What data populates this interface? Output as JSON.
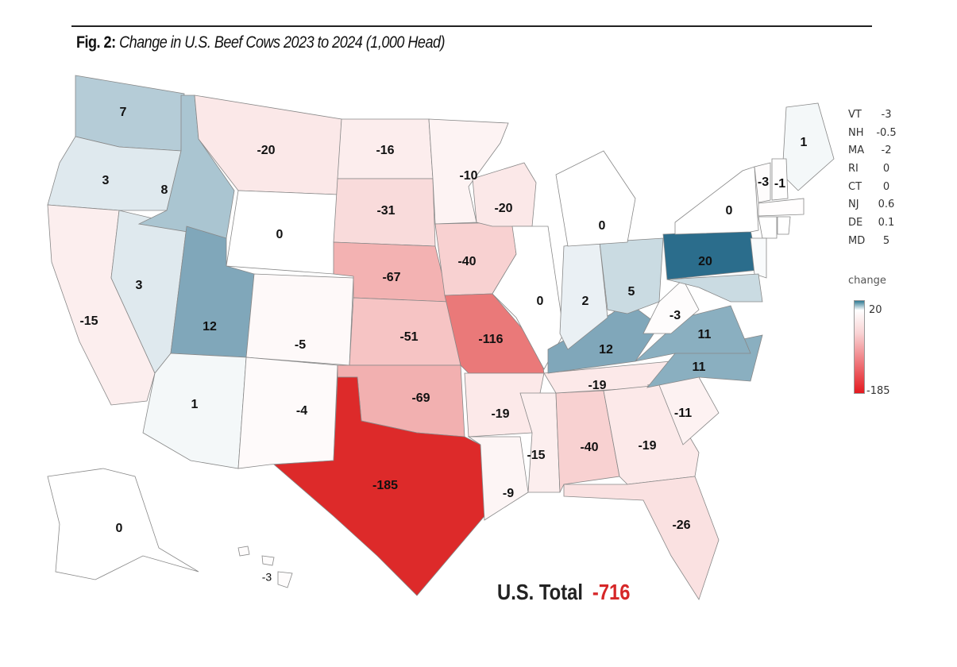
{
  "title": {
    "prefix": "Fig. 2:",
    "text": "Change in U.S. Beef Cows 2023 to 2024 (1,000 Head)"
  },
  "chart_data": {
    "type": "choropleth",
    "title": "Change in U.S. Beef Cows 2023 to 2024 (1,000 Head)",
    "unit": "1,000 Head",
    "states": [
      {
        "id": "WA",
        "value": 7,
        "label": "7"
      },
      {
        "id": "OR",
        "value": 3,
        "label": "3"
      },
      {
        "id": "CA",
        "value": -15,
        "label": "-15"
      },
      {
        "id": "NV",
        "value": 3,
        "label": "3"
      },
      {
        "id": "ID",
        "value": 8,
        "label": "8"
      },
      {
        "id": "MT",
        "value": -20,
        "label": "-20"
      },
      {
        "id": "WY",
        "value": 0,
        "label": "0"
      },
      {
        "id": "UT",
        "value": 12,
        "label": "12"
      },
      {
        "id": "CO",
        "value": -5,
        "label": "-5"
      },
      {
        "id": "AZ",
        "value": 1,
        "label": "1"
      },
      {
        "id": "NM",
        "value": -4,
        "label": "-4"
      },
      {
        "id": "ND",
        "value": -16,
        "label": "-16"
      },
      {
        "id": "SD",
        "value": -31,
        "label": "-31"
      },
      {
        "id": "NE",
        "value": -67,
        "label": "-67"
      },
      {
        "id": "KS",
        "value": -51,
        "label": "-51"
      },
      {
        "id": "OK",
        "value": -69,
        "label": "-69"
      },
      {
        "id": "TX",
        "value": -185,
        "label": "-185"
      },
      {
        "id": "MN",
        "value": -10,
        "label": "-10"
      },
      {
        "id": "IA",
        "value": -40,
        "label": "-40"
      },
      {
        "id": "MO",
        "value": -116,
        "label": "-116"
      },
      {
        "id": "WI",
        "value": -20,
        "label": "-20"
      },
      {
        "id": "IL",
        "value": 0,
        "label": "0"
      },
      {
        "id": "AR",
        "value": -19,
        "label": "-19"
      },
      {
        "id": "LA",
        "value": -9,
        "label": "-9"
      },
      {
        "id": "MS",
        "value": -15,
        "label": "-15"
      },
      {
        "id": "AL",
        "value": -40,
        "label": "-40"
      },
      {
        "id": "TN",
        "value": -19,
        "label": "-19"
      },
      {
        "id": "KY",
        "value": 12,
        "label": "12"
      },
      {
        "id": "IN",
        "value": 2,
        "label": "2"
      },
      {
        "id": "OH",
        "value": 5,
        "label": "5"
      },
      {
        "id": "MI",
        "value": 0,
        "label": "0"
      },
      {
        "id": "GA",
        "value": -19,
        "label": "-19"
      },
      {
        "id": "FL",
        "value": -26,
        "label": "-26"
      },
      {
        "id": "SC",
        "value": -11,
        "label": "-11"
      },
      {
        "id": "NC",
        "value": 11,
        "label": "11"
      },
      {
        "id": "VA",
        "value": 11,
        "label": "11"
      },
      {
        "id": "WV",
        "value": -3,
        "label": "-3"
      },
      {
        "id": "PA",
        "value": 20,
        "label": "20"
      },
      {
        "id": "NY",
        "value": 0,
        "label": "0"
      },
      {
        "id": "ME",
        "value": 1,
        "label": "1"
      },
      {
        "id": "VT",
        "value": -3,
        "label": "-3"
      },
      {
        "id": "NH",
        "value": -0.5,
        "label": "-1"
      },
      {
        "id": "MA",
        "value": -2,
        "label": ""
      },
      {
        "id": "CT",
        "value": 0,
        "label": ""
      },
      {
        "id": "RI",
        "value": 0,
        "label": ""
      },
      {
        "id": "NJ",
        "value": 0.6,
        "label": ""
      },
      {
        "id": "MD",
        "value": 5,
        "label": ""
      },
      {
        "id": "AK",
        "value": 0,
        "label": "0"
      },
      {
        "id": "HI",
        "value": -3,
        "label": "-3"
      }
    ],
    "side_table": [
      {
        "state": "VT",
        "value": "-3"
      },
      {
        "state": "NH",
        "value": "-0.5"
      },
      {
        "state": "MA",
        "value": "-2"
      },
      {
        "state": "RI",
        "value": "0"
      },
      {
        "state": "CT",
        "value": "0"
      },
      {
        "state": "NJ",
        "value": "0.6"
      },
      {
        "state": "DE",
        "value": "0.1"
      },
      {
        "state": "MD",
        "value": "5"
      }
    ],
    "legend": {
      "title": "change",
      "max": 20,
      "min": -185,
      "max_label": "20",
      "min_label": "-185",
      "max_color": "#2b6d8c",
      "mid_color": "#ffffff",
      "min_color": "#dd2a2a"
    }
  },
  "total": {
    "label": "U.S. Total",
    "value": "-716"
  }
}
